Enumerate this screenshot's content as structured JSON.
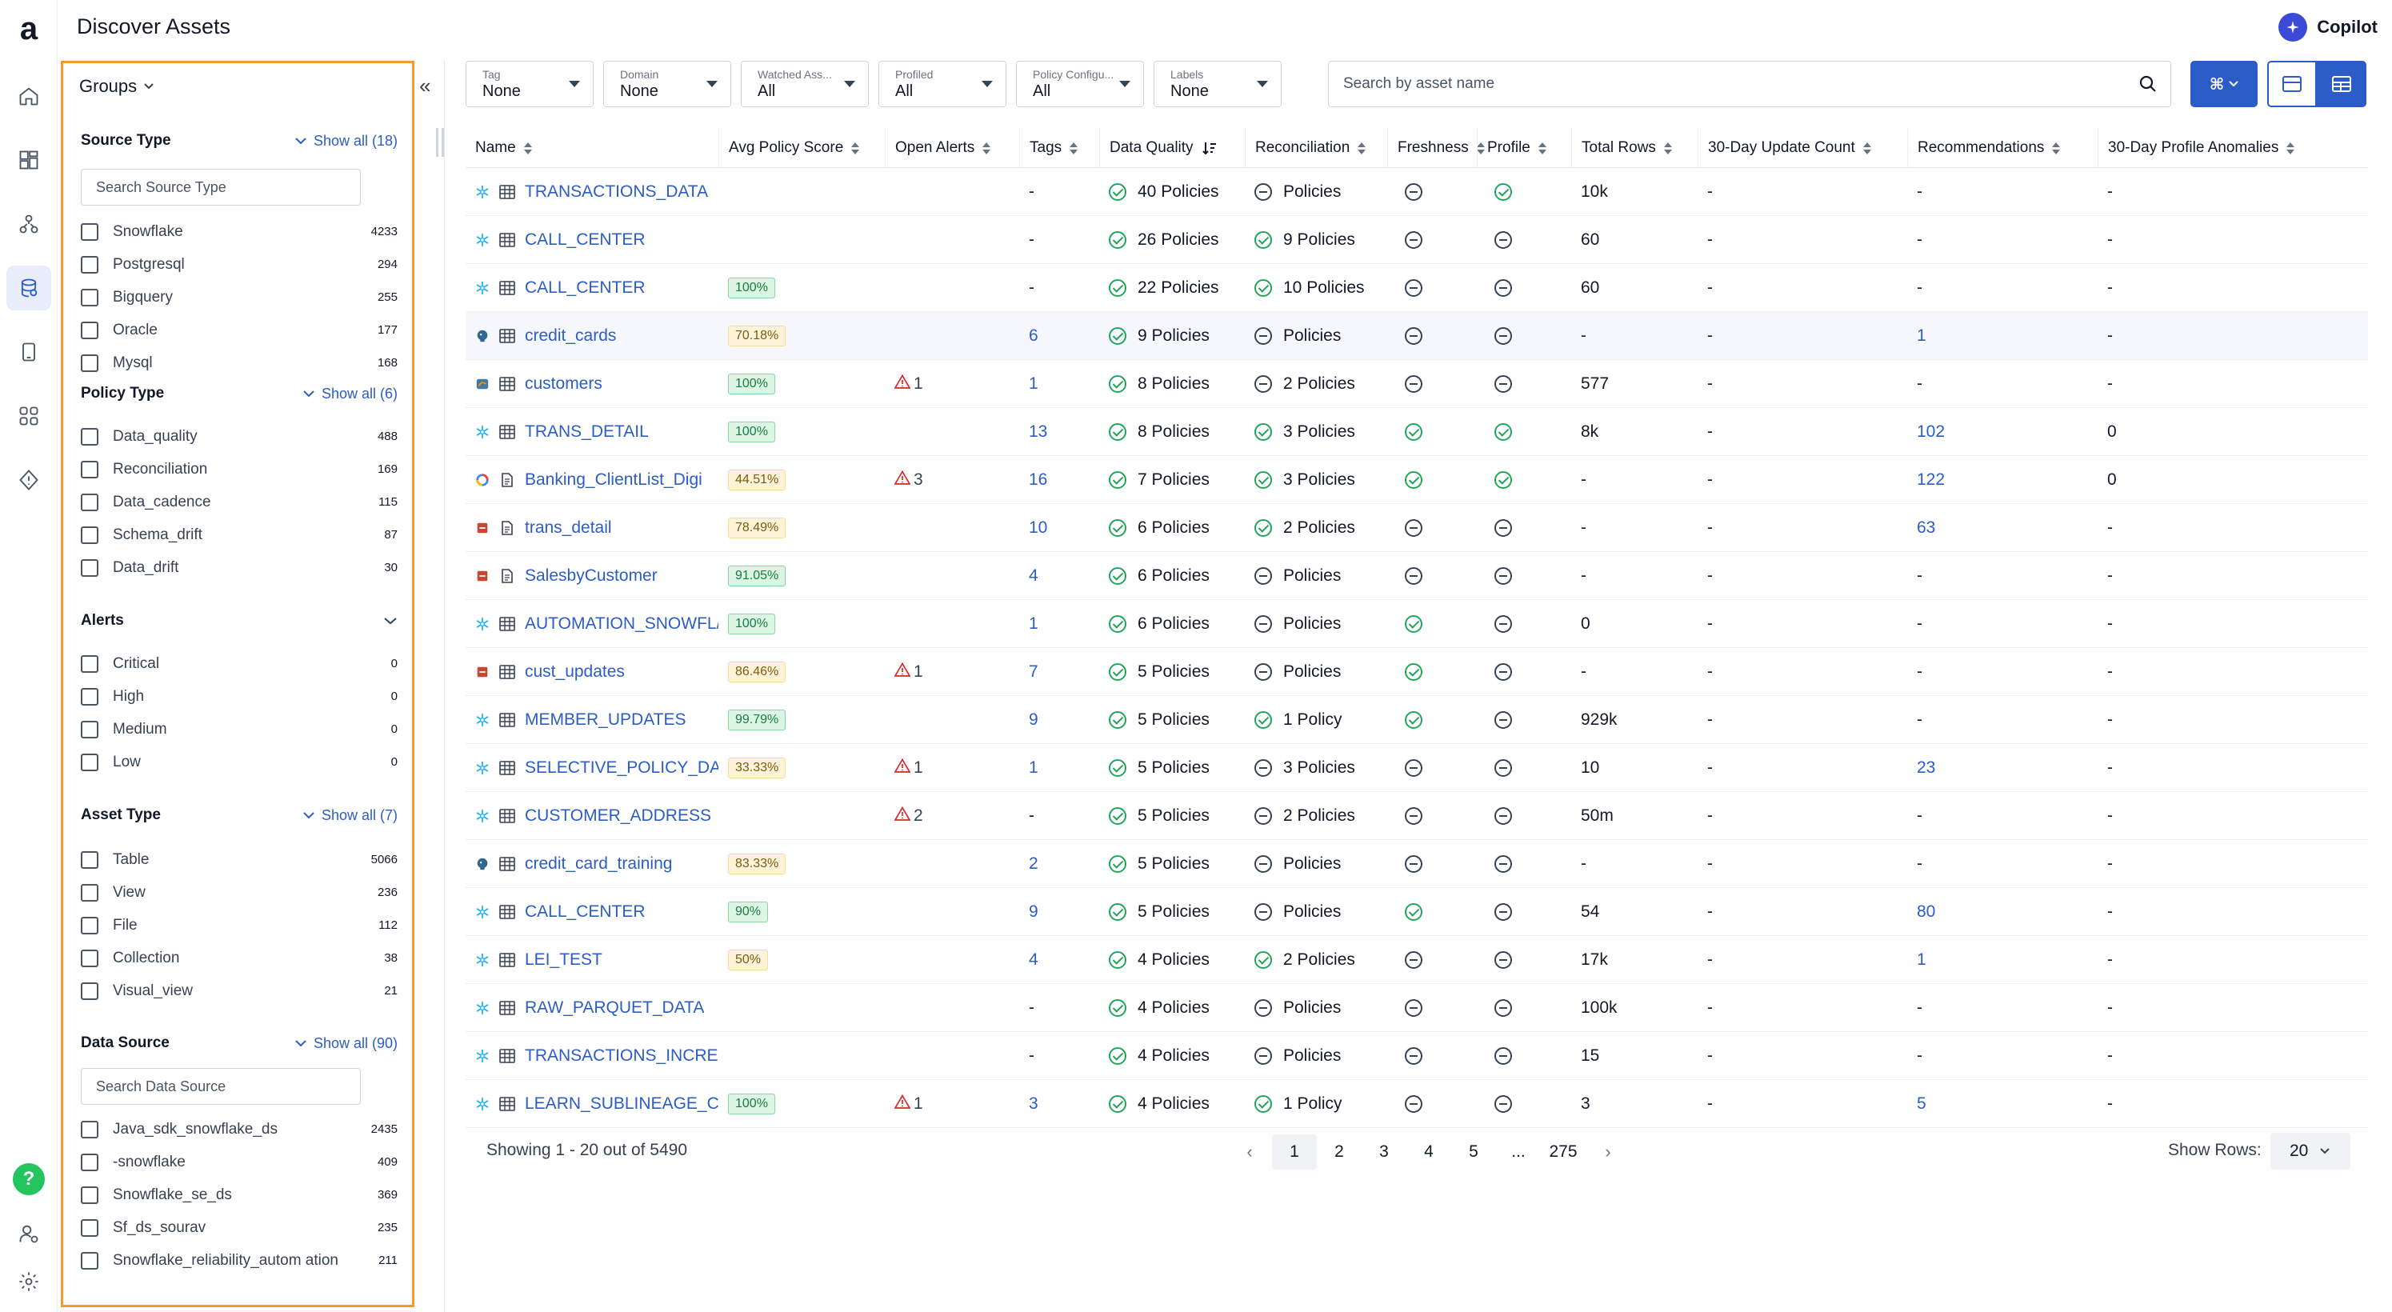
{
  "app": {
    "logo": "a",
    "title": "Discover Assets",
    "copilot": "Copilot"
  },
  "groups": {
    "title": "Groups",
    "source_type": {
      "title": "Source Type",
      "show": "Show all (18)",
      "placeholder": "Search Source Type",
      "items": [
        {
          "label": "Snowflake",
          "count": "4233"
        },
        {
          "label": "Postgresql",
          "count": "294"
        },
        {
          "label": "Bigquery",
          "count": "255"
        },
        {
          "label": "Oracle",
          "count": "177"
        },
        {
          "label": "Mysql",
          "count": "168"
        }
      ]
    },
    "policy_type": {
      "title": "Policy Type",
      "show": "Show all (6)",
      "items": [
        {
          "label": "Data_quality",
          "count": "488"
        },
        {
          "label": "Reconciliation",
          "count": "169"
        },
        {
          "label": "Data_cadence",
          "count": "115"
        },
        {
          "label": "Schema_drift",
          "count": "87"
        },
        {
          "label": "Data_drift",
          "count": "30"
        }
      ]
    },
    "alerts": {
      "title": "Alerts",
      "items": [
        {
          "label": "Critical",
          "count": "0"
        },
        {
          "label": "High",
          "count": "0"
        },
        {
          "label": "Medium",
          "count": "0"
        },
        {
          "label": "Low",
          "count": "0"
        }
      ]
    },
    "asset_type": {
      "title": "Asset Type",
      "show": "Show all (7)",
      "items": [
        {
          "label": "Table",
          "count": "5066"
        },
        {
          "label": "View",
          "count": "236"
        },
        {
          "label": "File",
          "count": "112"
        },
        {
          "label": "Collection",
          "count": "38"
        },
        {
          "label": "Visual_view",
          "count": "21"
        }
      ]
    },
    "data_source": {
      "title": "Data Source",
      "show": "Show all (90)",
      "placeholder": "Search Data Source",
      "items": [
        {
          "label": "Java_sdk_snowflake_ds",
          "count": "2435"
        },
        {
          "label": "-snowflake",
          "count": "409"
        },
        {
          "label": "Snowflake_se_ds",
          "count": "369"
        },
        {
          "label": "Sf_ds_sourav",
          "count": "235"
        },
        {
          "label": "Snowflake_reliability_autom ation",
          "count": "211"
        }
      ]
    }
  },
  "filters": [
    {
      "label": "Tag",
      "value": "None"
    },
    {
      "label": "Domain",
      "value": "None"
    },
    {
      "label": "Watched Ass...",
      "value": "All"
    },
    {
      "label": "Profiled",
      "value": "All"
    },
    {
      "label": "Policy Configu...",
      "value": "All"
    },
    {
      "label": "Labels",
      "value": "None"
    }
  ],
  "search": {
    "placeholder": "Search by asset name"
  },
  "toolbar": {
    "cmd": "⌘"
  },
  "table": {
    "columns": [
      "Name",
      "Avg Policy Score",
      "Open Alerts",
      "Tags",
      "Data Quality",
      "Reconciliation",
      "Freshness",
      "Profile",
      "Total Rows",
      "30-Day Update Count",
      "Recommendations",
      "30-Day Profile Anomalies"
    ],
    "rows": [
      {
        "src": "snowflake",
        "type": "table",
        "name": "TRANSACTIONS_DATA",
        "score": "",
        "score_c": "",
        "alerts": "",
        "tags": "-",
        "dq": "40 Policies",
        "rec": "Policies",
        "rec_ok": false,
        "fresh": false,
        "profile": true,
        "rows": "10k",
        "upd": "-",
        "recs": "-",
        "anom": "-"
      },
      {
        "src": "snowflake",
        "type": "table",
        "name": "CALL_CENTER",
        "score": "",
        "score_c": "",
        "alerts": "",
        "tags": "-",
        "dq": "26 Policies",
        "rec": "9 Policies",
        "rec_ok": true,
        "fresh": false,
        "profile": false,
        "rows": "60",
        "upd": "-",
        "recs": "-",
        "anom": "-"
      },
      {
        "src": "snowflake",
        "type": "table",
        "name": "CALL_CENTER",
        "score": "100%",
        "score_c": "g",
        "alerts": "",
        "tags": "-",
        "dq": "22 Policies",
        "rec": "10 Policies",
        "rec_ok": true,
        "fresh": false,
        "profile": false,
        "rows": "60",
        "upd": "-",
        "recs": "-",
        "anom": "-"
      },
      {
        "src": "postgres",
        "type": "table",
        "name": "credit_cards",
        "score": "70.18%",
        "score_c": "y",
        "alerts": "",
        "tags": "6",
        "dq": "9 Policies",
        "rec": "Policies",
        "rec_ok": false,
        "fresh": false,
        "profile": false,
        "rows": "-",
        "upd": "-",
        "recs": "1",
        "anom": "-",
        "hl": true
      },
      {
        "src": "mysql",
        "type": "table",
        "name": "customers",
        "score": "100%",
        "score_c": "g",
        "alerts": "1",
        "tags": "1",
        "dq": "8 Policies",
        "rec": "2 Policies",
        "rec_ok": false,
        "fresh": false,
        "profile": false,
        "rows": "577",
        "upd": "-",
        "recs": "-",
        "anom": "-"
      },
      {
        "src": "snowflake",
        "type": "table",
        "name": "TRANS_DETAIL",
        "score": "100%",
        "score_c": "g",
        "alerts": "",
        "tags": "13",
        "dq": "8 Policies",
        "rec": "3 Policies",
        "rec_ok": true,
        "fresh": true,
        "profile": true,
        "rows": "8k",
        "upd": "-",
        "recs": "102",
        "anom": "0"
      },
      {
        "src": "bigquery",
        "type": "file",
        "name": "Banking_ClientList_Digi",
        "score": "44.51%",
        "score_c": "y",
        "alerts": "3",
        "tags": "16",
        "dq": "7 Policies",
        "rec": "3 Policies",
        "rec_ok": true,
        "fresh": true,
        "profile": true,
        "rows": "-",
        "upd": "-",
        "recs": "122",
        "anom": "0"
      },
      {
        "src": "oracle",
        "type": "file",
        "name": "trans_detail",
        "score": "78.49%",
        "score_c": "y",
        "alerts": "",
        "tags": "10",
        "dq": "6 Policies",
        "rec": "2 Policies",
        "rec_ok": true,
        "fresh": false,
        "profile": false,
        "rows": "-",
        "upd": "-",
        "recs": "63",
        "anom": "-"
      },
      {
        "src": "oracle",
        "type": "file",
        "name": "SalesbyCustomer",
        "score": "91.05%",
        "score_c": "g",
        "alerts": "",
        "tags": "4",
        "dq": "6 Policies",
        "rec": "Policies",
        "rec_ok": false,
        "fresh": false,
        "profile": false,
        "rows": "-",
        "upd": "-",
        "recs": "-",
        "anom": "-"
      },
      {
        "src": "snowflake",
        "type": "table",
        "name": "AUTOMATION_SNOWFL/",
        "score": "100%",
        "score_c": "g",
        "alerts": "",
        "tags": "1",
        "dq": "6 Policies",
        "rec": "Policies",
        "rec_ok": false,
        "fresh": true,
        "profile": false,
        "rows": "0",
        "upd": "-",
        "recs": "-",
        "anom": "-"
      },
      {
        "src": "oracle",
        "type": "table",
        "name": "cust_updates",
        "score": "86.46%",
        "score_c": "y",
        "alerts": "1",
        "tags": "7",
        "dq": "5 Policies",
        "rec": "Policies",
        "rec_ok": false,
        "fresh": true,
        "profile": false,
        "rows": "-",
        "upd": "-",
        "recs": "-",
        "anom": "-"
      },
      {
        "src": "snowflake",
        "type": "table",
        "name": "MEMBER_UPDATES",
        "score": "99.79%",
        "score_c": "g",
        "alerts": "",
        "tags": "9",
        "dq": "5 Policies",
        "rec": "1 Policy",
        "rec_ok": true,
        "fresh": true,
        "profile": false,
        "rows": "929k",
        "upd": "-",
        "recs": "-",
        "anom": "-"
      },
      {
        "src": "snowflake",
        "type": "table",
        "name": "SELECTIVE_POLICY_DAT",
        "score": "33.33%",
        "score_c": "y",
        "alerts": "1",
        "tags": "1",
        "dq": "5 Policies",
        "rec": "3 Policies",
        "rec_ok": false,
        "fresh": false,
        "profile": false,
        "rows": "10",
        "upd": "-",
        "recs": "23",
        "anom": "-"
      },
      {
        "src": "snowflake",
        "type": "table",
        "name": "CUSTOMER_ADDRESS",
        "score": "",
        "score_c": "",
        "alerts": "2",
        "tags": "-",
        "dq": "5 Policies",
        "rec": "2 Policies",
        "rec_ok": false,
        "fresh": false,
        "profile": false,
        "rows": "50m",
        "upd": "-",
        "recs": "-",
        "anom": "-"
      },
      {
        "src": "postgres",
        "type": "table",
        "name": "credit_card_training",
        "score": "83.33%",
        "score_c": "y",
        "alerts": "",
        "tags": "2",
        "dq": "5 Policies",
        "rec": "Policies",
        "rec_ok": false,
        "fresh": false,
        "profile": false,
        "rows": "-",
        "upd": "-",
        "recs": "-",
        "anom": "-"
      },
      {
        "src": "snowflake",
        "type": "table",
        "name": "CALL_CENTER",
        "score": "90%",
        "score_c": "g",
        "alerts": "",
        "tags": "9",
        "dq": "5 Policies",
        "rec": "Policies",
        "rec_ok": false,
        "fresh": true,
        "profile": false,
        "rows": "54",
        "upd": "-",
        "recs": "80",
        "anom": "-"
      },
      {
        "src": "snowflake",
        "type": "table",
        "name": "LEI_TEST",
        "score": "50%",
        "score_c": "y",
        "alerts": "",
        "tags": "4",
        "dq": "4 Policies",
        "rec": "2 Policies",
        "rec_ok": true,
        "fresh": false,
        "profile": false,
        "rows": "17k",
        "upd": "-",
        "recs": "1",
        "anom": "-"
      },
      {
        "src": "snowflake",
        "type": "table",
        "name": "RAW_PARQUET_DATA",
        "score": "",
        "score_c": "",
        "alerts": "",
        "tags": "-",
        "dq": "4 Policies",
        "rec": "Policies",
        "rec_ok": false,
        "fresh": false,
        "profile": false,
        "rows": "100k",
        "upd": "-",
        "recs": "-",
        "anom": "-"
      },
      {
        "src": "snowflake",
        "type": "table",
        "name": "TRANSACTIONS_INCREI",
        "score": "",
        "score_c": "",
        "alerts": "",
        "tags": "-",
        "dq": "4 Policies",
        "rec": "Policies",
        "rec_ok": false,
        "fresh": false,
        "profile": false,
        "rows": "15",
        "upd": "-",
        "recs": "-",
        "anom": "-"
      },
      {
        "src": "snowflake",
        "type": "table",
        "name": "LEARN_SUBLINEAGE_CI",
        "score": "100%",
        "score_c": "g",
        "alerts": "1",
        "tags": "3",
        "dq": "4 Policies",
        "rec": "1 Policy",
        "rec_ok": true,
        "fresh": false,
        "profile": false,
        "rows": "3",
        "upd": "-",
        "recs": "5",
        "anom": "-"
      }
    ]
  },
  "footer": {
    "showing": "Showing 1 - 20 out of 5490",
    "pages": [
      "1",
      "2",
      "3",
      "4",
      "5",
      "...",
      "275"
    ],
    "rows_label": "Show Rows:",
    "rows_value": "20"
  },
  "colors": {
    "accent": "#2c5cc5",
    "highlight": "#f39a2b",
    "ok": "#22a55b"
  }
}
